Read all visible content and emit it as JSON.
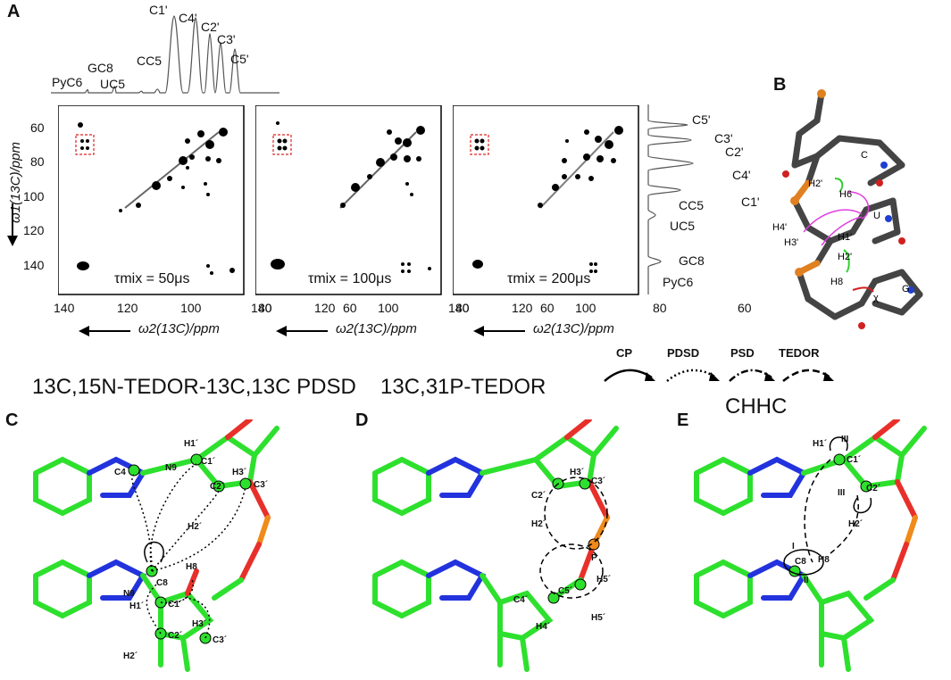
{
  "panels": {
    "A": "A",
    "B": "B",
    "C": "C",
    "D": "D",
    "E": "E"
  },
  "projection_labels": {
    "top": [
      "PyC6",
      "GC8",
      "UC5",
      "CC5",
      "C1'",
      "C4'",
      "C2'",
      "C3'",
      "C5'"
    ],
    "right": [
      "C5'",
      "C3'",
      "C2'",
      "C4'",
      "C1'",
      "CC5",
      "UC5",
      "GC8",
      "PyC6"
    ]
  },
  "spectra": {
    "x_axis_title": "ω2(13C)/ppm",
    "y_axis_title": "ω1(13C)/ppm",
    "x_ticks": [
      "140",
      "120",
      "100",
      "80",
      "60"
    ],
    "y_ticks": [
      "60",
      "80",
      "100",
      "120",
      "140"
    ],
    "mixing_times": [
      "τmix = 50μs",
      "τmix = 100μs",
      "τmix = 200μs"
    ]
  },
  "experiment_titles": {
    "C": "13C,15N-TEDOR-13C,13C PDSD",
    "D": "13C,31P-TEDOR",
    "E": "CHHC"
  },
  "legend": [
    "CP",
    "PDSD",
    "PSD",
    "TEDOR"
  ],
  "structure_B_labels": [
    "C",
    "U",
    "G",
    "H2'",
    "H6",
    "H4'",
    "H3'",
    "H1'",
    "H2'",
    "H8",
    "χ"
  ],
  "atom_labels": {
    "C": [
      "H1´",
      "C1´",
      "C4",
      "N9",
      "C2´",
      "H3´",
      "C3´",
      "H2´",
      "H8",
      "C8",
      "N9",
      "H1´",
      "C1´",
      "C2´",
      "H3´",
      "C3´",
      "H2´"
    ],
    "D": [
      "H3´",
      "C3´",
      "C2´",
      "H2´",
      "P",
      "H5´",
      "C5´",
      "C4´",
      "H4´",
      "H5´"
    ],
    "E": [
      "H1´",
      "C1´",
      "C2´",
      "H2´",
      "C8",
      "H8",
      "I",
      "II",
      "III",
      "III"
    ]
  },
  "colors": {
    "carbon": "#2ee02e",
    "oxygen": "#e8302a",
    "nitrogen": "#2233dd",
    "phosphorus": "#f08a1a",
    "hydrogen": "#e6e6e6",
    "dashbox": "#e02020"
  }
}
